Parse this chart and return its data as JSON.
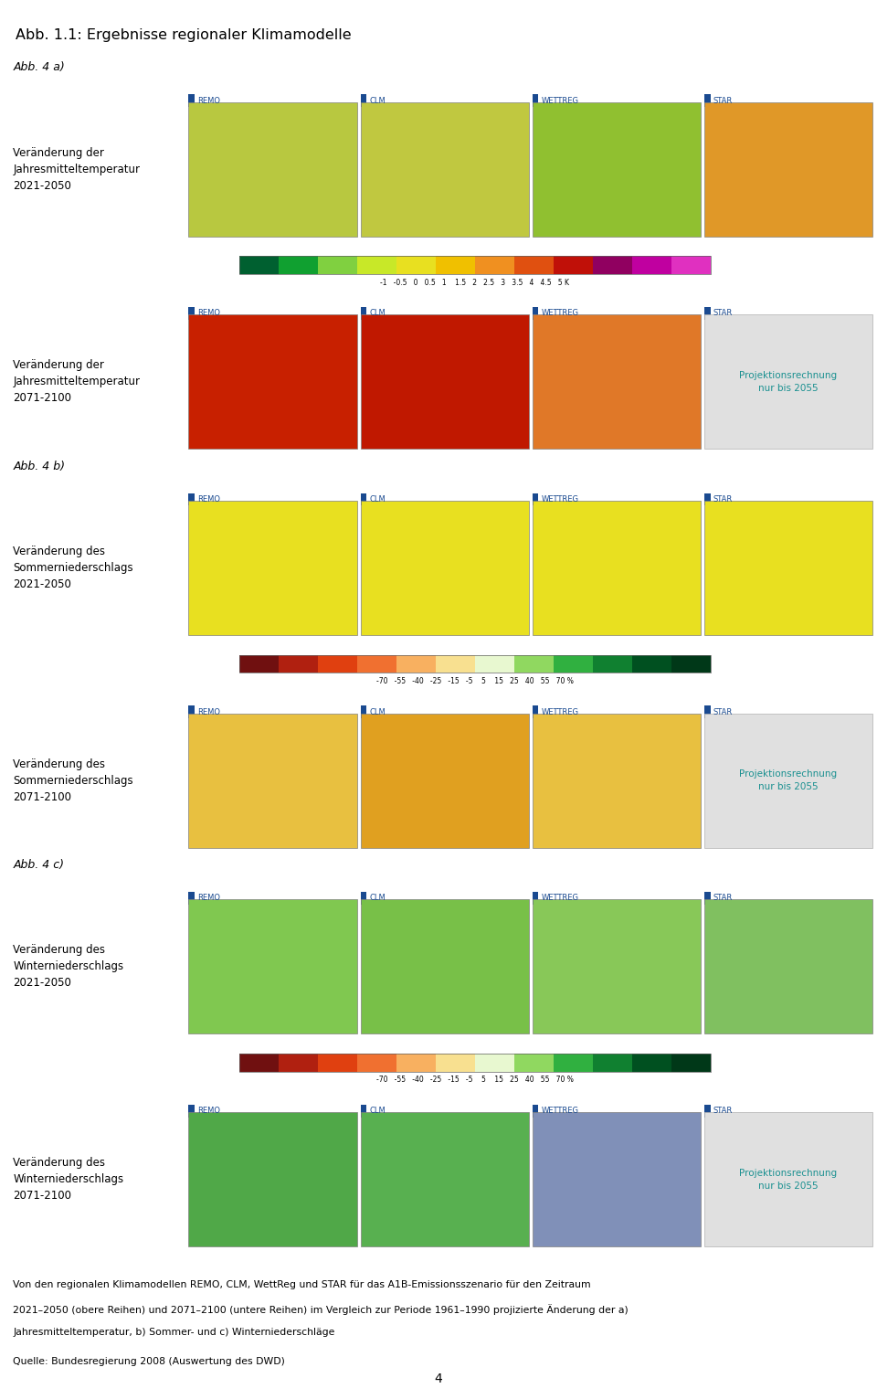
{
  "title": "Abb. 1.1: Ergebnisse regionaler Klimamodelle",
  "page_number": "4",
  "background_color": "#ffffff",
  "fig_width": 9.6,
  "fig_height": 15.31,
  "dpi": 100,
  "sections": [
    {
      "label": "Abb. 4 a)",
      "rows": [
        {
          "description_lines": [
            "Veränderung der",
            "Jahresmitteltemperatur",
            "2021-2050"
          ],
          "model_labels": [
            "REMO",
            "CLM",
            "WETTREG",
            "STAR"
          ],
          "map_colors": [
            "#b8c840",
            "#c0c840",
            "#90c030",
            "#e09828"
          ],
          "has_proj_note": false
        },
        {
          "description_lines": [
            "Veränderung der",
            "Jahresmitteltemperatur",
            "2071-2100"
          ],
          "model_labels": [
            "REMO",
            "CLM",
            "WETTREG",
            "STAR"
          ],
          "map_colors": [
            "#c82000",
            "#c01800",
            "#e07828",
            "#e0e0e0"
          ],
          "has_proj_note": true,
          "projection_note_text": "Projektionsrechnung\nnur bis 2055"
        }
      ],
      "colorbar_colors": [
        "#006030",
        "#10a030",
        "#80d040",
        "#c8e828",
        "#e8e020",
        "#f0c000",
        "#f09020",
        "#e05010",
        "#c01008",
        "#900060",
        "#c000a0",
        "#e030c0"
      ],
      "colorbar_label": "-1   -0.5   0   0.5   1    1.5   2   2.5   3   3.5   4   4.5   5 K"
    },
    {
      "label": "Abb. 4 b)",
      "rows": [
        {
          "description_lines": [
            "Veränderung des",
            "Sommerniederschlags",
            "2021-2050"
          ],
          "model_labels": [
            "REMO",
            "CLM",
            "WETTREG",
            "STAR"
          ],
          "map_colors": [
            "#e8e020",
            "#e8e020",
            "#e8e020",
            "#e8e020"
          ],
          "has_proj_note": false
        },
        {
          "description_lines": [
            "Veränderung des",
            "Sommerniederschlags",
            "2071-2100"
          ],
          "model_labels": [
            "REMO",
            "CLM",
            "WETTREG",
            "STAR"
          ],
          "map_colors": [
            "#e8c040",
            "#e0a020",
            "#e8c040",
            "#e0e0e0"
          ],
          "has_proj_note": true,
          "projection_note_text": "Projektionsrechnung\nnur bis 2055"
        }
      ],
      "colorbar_colors": [
        "#701010",
        "#b02010",
        "#e04010",
        "#f07030",
        "#f8b060",
        "#f8e090",
        "#e8f8d0",
        "#90d860",
        "#30b040",
        "#108030",
        "#005020",
        "#003818"
      ],
      "colorbar_label": "-70   -55   -40   -25   -15   -5    5    15   25   40   55   70 %"
    },
    {
      "label": "Abb. 4 c)",
      "rows": [
        {
          "description_lines": [
            "Veränderung des",
            "Winterniederschlags",
            "2021-2050"
          ],
          "model_labels": [
            "REMO",
            "CLM",
            "WETTREG",
            "STAR"
          ],
          "map_colors": [
            "#80c850",
            "#78c048",
            "#88c858",
            "#80c060"
          ],
          "has_proj_note": false
        },
        {
          "description_lines": [
            "Veränderung des",
            "Winterniederschlags",
            "2071-2100"
          ],
          "model_labels": [
            "REMO",
            "CLM",
            "WETTREG",
            "STAR"
          ],
          "map_colors": [
            "#50a848",
            "#58b050",
            "#8090b8",
            "#e0e0e0"
          ],
          "has_proj_note": true,
          "projection_note_text": "Projektionsrechnung\nnur bis 2055"
        }
      ],
      "colorbar_colors": [
        "#701010",
        "#b02010",
        "#e04010",
        "#f07030",
        "#f8b060",
        "#f8e090",
        "#e8f8d0",
        "#90d860",
        "#30b040",
        "#108030",
        "#005020",
        "#003818"
      ],
      "colorbar_label": "-70   -55   -40   -25   -15   -5    5    15   25   40   55   70 %"
    }
  ],
  "caption_lines": [
    "Von den regionalen Klimamodellen REMO, CLM, WettReg und STAR für das A1B-Emissionsszenario für den Zeitraum",
    "2021–2050 (obere Reihen) und 2071–2100 (untere Reihen) im Vergleich zur Periode 1961–1990 projizierte Änderung der a)",
    "Jahresmitteltemperatur, b) Sommer- und c) Winterniederschläge"
  ],
  "source_line": "Quelle: Bundesregierung 2008 (Auswertung des DWD)",
  "model_label_color": "#1a4a90",
  "projection_note_color": "#1a9090",
  "proj_box_facecolor": "#e0e0e0",
  "proj_box_edgecolor": "#b0b0b0"
}
